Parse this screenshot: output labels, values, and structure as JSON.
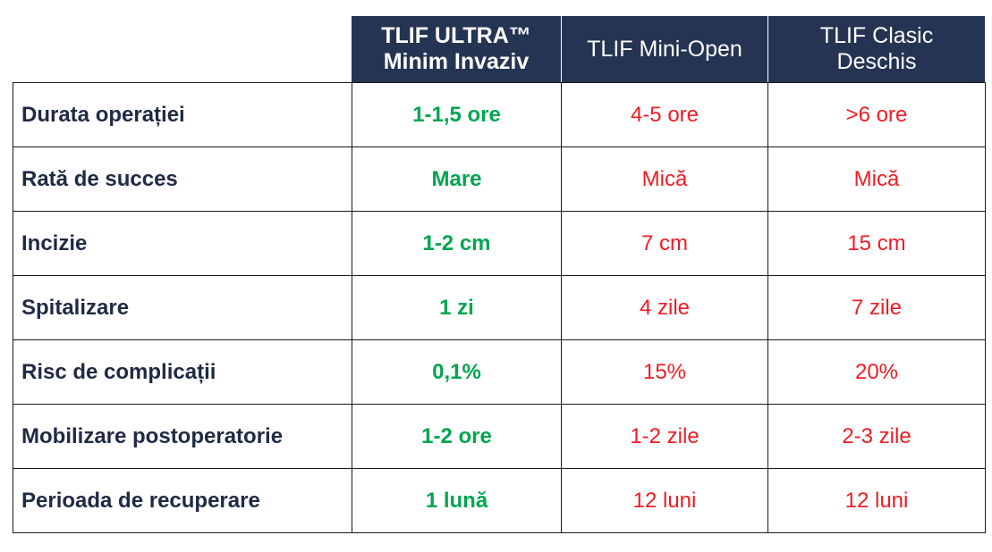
{
  "headers": {
    "ultra_line1": "TLIF ULTRA™",
    "ultra_line2": "Minim Invaziv",
    "mini": "TLIF Mini-Open",
    "classic_line1": "TLIF Clasic",
    "classic_line2": "Deschis"
  },
  "rows": [
    {
      "label": "Durata operației",
      "ultra": "1-1,5 ore",
      "mini": "4-5 ore",
      "classic": ">6 ore"
    },
    {
      "label": "Rată de succes",
      "ultra": "Mare",
      "mini": "Mică",
      "classic": "Mică"
    },
    {
      "label": "Incizie",
      "ultra": "1-2 cm",
      "mini": "7 cm",
      "classic": "15 cm"
    },
    {
      "label": "Spitalizare",
      "ultra": "1 zi",
      "mini": "4 zile",
      "classic": "7 zile"
    },
    {
      "label": "Risc de complicații",
      "ultra": "0,1%",
      "mini": "15%",
      "classic": "20%"
    },
    {
      "label": "Mobilizare postoperatorie",
      "ultra": "1-2 ore",
      "mini": "1-2 zile",
      "classic": "2-3 zile"
    },
    {
      "label": "Perioada de recuperare",
      "ultra": "1 lună",
      "mini": "12 luni",
      "classic": "12 luni"
    }
  ],
  "colors": {
    "header_bg": "#243452",
    "ultra_text": "#00a651",
    "other_text": "#ee1c25",
    "label_text": "#1f2a44"
  }
}
